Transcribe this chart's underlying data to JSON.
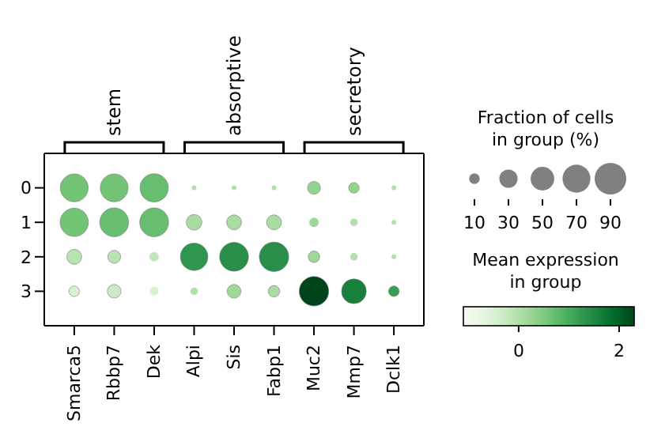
{
  "chart_data": {
    "type": "bubble",
    "categories": [
      "Smarca5",
      "Rbbp7",
      "Dek",
      "Alpi",
      "Sis",
      "Fabp1",
      "Muc2",
      "Mmp7",
      "Dclk1"
    ],
    "series": [
      {
        "values": [
          0,
          0,
          0,
          0,
          0,
          0,
          0,
          0,
          0
        ],
        "sizes": [
          70,
          70,
          72,
          2,
          2,
          2,
          15,
          10,
          2
        ],
        "colors": [
          "#74c476",
          "#74c476",
          "#68be70",
          "#b1e0aa",
          "#b1e0aa",
          "#b1e0aa",
          "#94d390",
          "#94d390",
          "#b1e0aa"
        ]
      },
      {
        "values": [
          1,
          1,
          1,
          1,
          1,
          1,
          1,
          1,
          1
        ],
        "sizes": [
          72,
          75,
          75,
          22,
          20,
          20,
          8,
          5,
          2
        ],
        "colors": [
          "#74c476",
          "#68be70",
          "#68be70",
          "#a8dca2",
          "#a8dca2",
          "#a8dca2",
          "#9ed899",
          "#b1e0aa",
          "#b1e0aa"
        ]
      },
      {
        "values": [
          2,
          2,
          2,
          2,
          2,
          2,
          2,
          2,
          2
        ],
        "sizes": [
          20,
          15,
          8,
          68,
          75,
          78,
          12,
          5,
          2
        ],
        "colors": [
          "#bae3b3",
          "#bae3b3",
          "#c3e7bc",
          "#2e964e",
          "#278f48",
          "#278f48",
          "#9ed899",
          "#b1e0aa",
          "#b1e0aa"
        ]
      },
      {
        "values": [
          3,
          3,
          3,
          3,
          3,
          3,
          3,
          3,
          3
        ],
        "sizes": [
          10,
          17,
          7,
          5,
          17,
          12,
          78,
          55,
          10
        ],
        "colors": [
          "#d9f0d3",
          "#cbeac4",
          "#d9f0d3",
          "#b1e0aa",
          "#9ed899",
          "#a8dca2",
          "#00441b",
          "#17803c",
          "#359e53"
        ]
      }
    ],
    "ylim": [
      4,
      -1
    ],
    "yticks": [
      0,
      1,
      2,
      3
    ],
    "size_legend": [
      10,
      30,
      50,
      70,
      90
    ],
    "legend_title": "Fraction of cells\nin group (%)",
    "clabel": "Mean expression\nin group",
    "clim": [
      -1.1,
      2.3
    ],
    "cticks": [
      0,
      2
    ],
    "annotations": [
      "stem",
      "absorptive",
      "secretory"
    ]
  }
}
